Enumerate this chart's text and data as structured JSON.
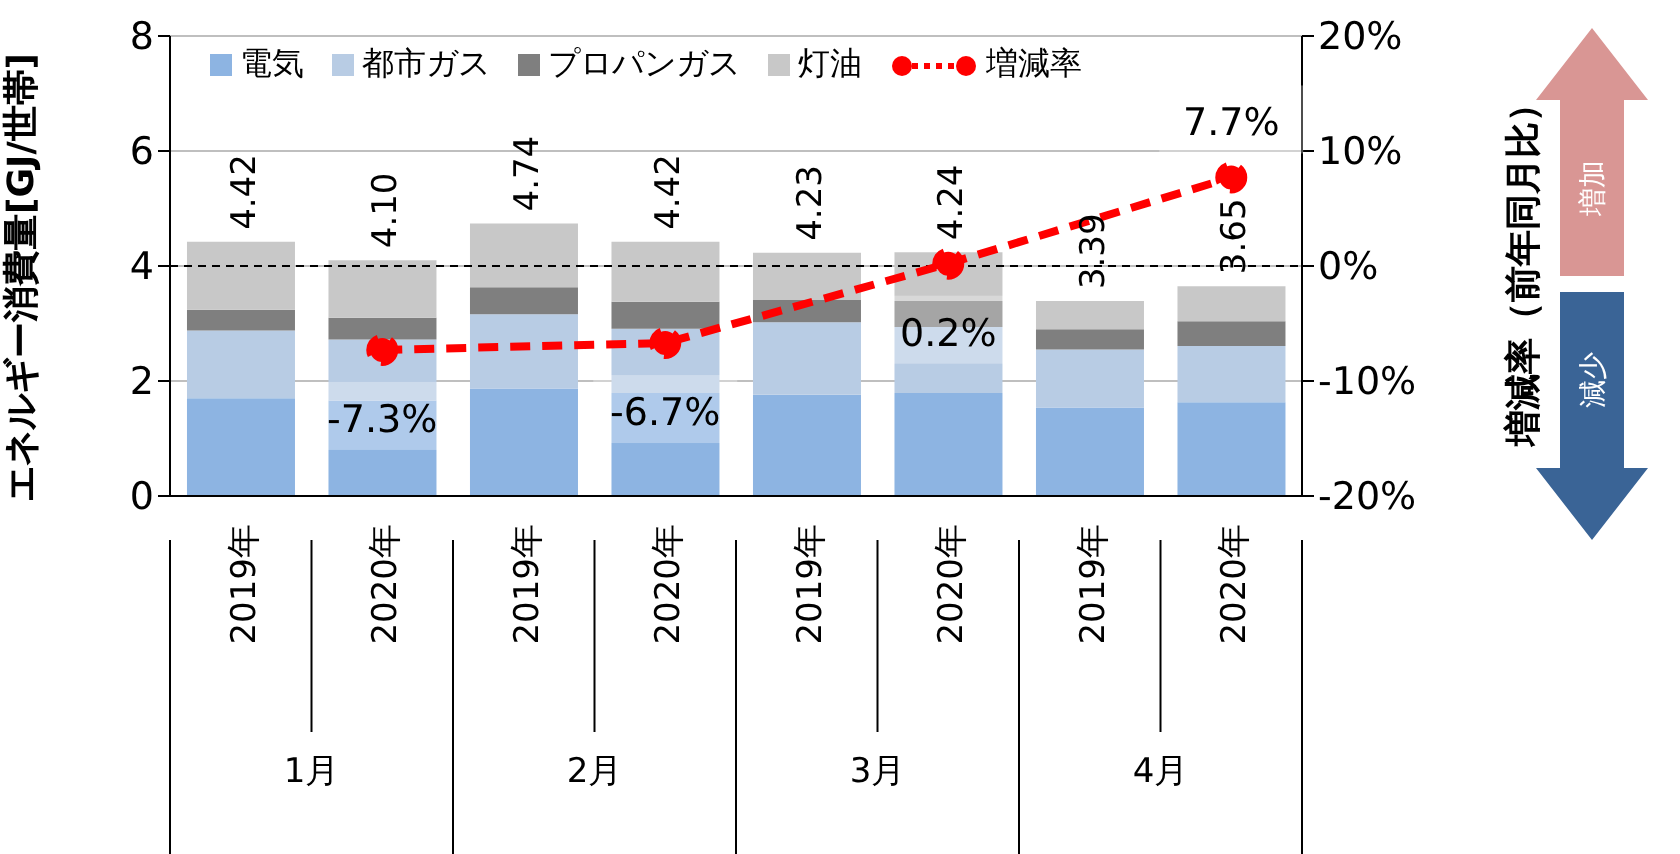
{
  "chart_data": {
    "type": "bar",
    "stacked": true,
    "ylabel": "エネルギー消費量[GJ/世帯]",
    "y2label": "増減率（前年同月比）",
    "categories": [
      "2019年",
      "2020年",
      "2019年",
      "2020年",
      "2019年",
      "2020年",
      "2019年",
      "2020年"
    ],
    "series": [
      {
        "name": "電気",
        "color": "#8db4e2",
        "values": [
          1.7,
          1.66,
          1.87,
          1.79,
          1.76,
          1.79,
          1.54,
          1.63
        ]
      },
      {
        "name": "都市ガス",
        "color": "#b8cce4",
        "values": [
          1.18,
          1.06,
          1.29,
          1.12,
          1.26,
          1.15,
          1.01,
          0.98
        ]
      },
      {
        "name": "プロパンガス",
        "color": "#7f7f7f",
        "values": [
          0.36,
          0.38,
          0.47,
          0.47,
          0.39,
          0.45,
          0.35,
          0.43
        ]
      },
      {
        "name": "灯油",
        "color": "#c8c8c8",
        "values": [
          1.18,
          1.0,
          1.11,
          1.04,
          0.82,
          0.85,
          0.49,
          0.61
        ]
      },
      {
        "name": "増減率",
        "type": "line",
        "axis": "y2",
        "color": "#ff0000",
        "line_style": "dashed",
        "marker": "circle",
        "values": [
          null,
          -7.3,
          null,
          -6.7,
          null,
          0.2,
          null,
          7.7
        ],
        "value_labels": [
          null,
          "-7.3%",
          null,
          "-6.7%",
          null,
          "0.2%",
          null,
          "7.7%"
        ]
      }
    ],
    "totals": [
      "4.42",
      "4.10",
      "4.74",
      "4.42",
      "4.23",
      "4.24",
      "3.39",
      "3.65"
    ],
    "ylim": [
      0,
      8
    ],
    "yticks": [
      0,
      2,
      4,
      6,
      8
    ],
    "y2lim": [
      -20,
      20
    ],
    "y2ticks": [
      {
        "value": -20,
        "label": "-20%"
      },
      {
        "value": -10,
        "label": "-10%"
      },
      {
        "value": 0,
        "label": "0%"
      },
      {
        "value": 10,
        "label": "10%"
      },
      {
        "value": 20,
        "label": "20%"
      }
    ],
    "ref_lines": [
      {
        "axis": "y",
        "value": 4,
        "color": "#000000",
        "line_style": "dashed"
      }
    ],
    "grid": "y",
    "legend": "top left",
    "annotations": [
      "1月",
      "2月",
      "3月",
      "4月",
      "増加",
      "減少"
    ]
  }
}
